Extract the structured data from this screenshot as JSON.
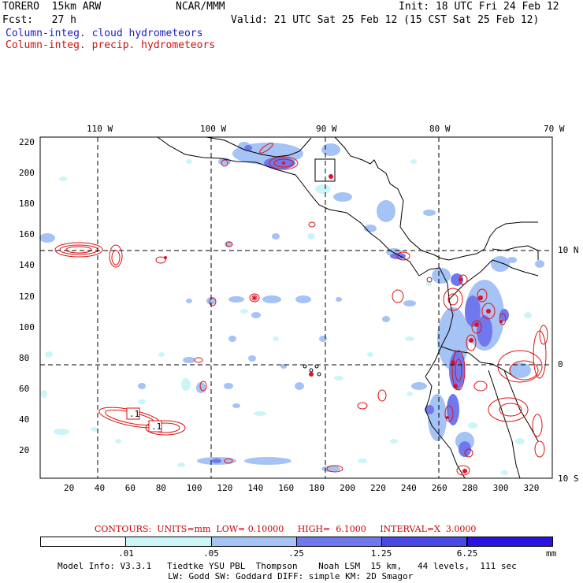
{
  "header": {
    "model": "TORERO  15km ARW",
    "org": "NCAR/MMM",
    "init": "Init: 18 UTC Fri 24 Feb 12",
    "fcst": "Fcst:   27 h",
    "valid": "Valid: 21 UTC Sat 25 Feb 12 (15 CST Sat 25 Feb 12)",
    "legend_blue": "Column-integ. cloud hydrometeors",
    "legend_red": "Column-integ. precip. hydrometeors"
  },
  "axes": {
    "top_lon_labels": [
      "110 W",
      "100 W",
      "90 W",
      "80 W",
      "70 W"
    ],
    "right_lat_labels": [
      "10 N",
      "0",
      "10 S"
    ],
    "x_ticks": [
      "20",
      "40",
      "60",
      "80",
      "100",
      "120",
      "140",
      "160",
      "180",
      "200",
      "220",
      "240",
      "260",
      "280",
      "300",
      "320"
    ],
    "y_ticks": [
      "220",
      "200",
      "180",
      "160",
      "140",
      "120",
      "100",
      "80",
      "60",
      "40",
      "20"
    ]
  },
  "contour_labels": [
    ".1",
    ".1"
  ],
  "contour_info": {
    "text": "CONTOURS:  UNITS=mm  LOW= 0.10000     HIGH=  6.1000     INTERVAL=X  3.0000"
  },
  "colorbar": {
    "labels": [
      ".01",
      ".05",
      ".25",
      "1.25",
      "6.25"
    ],
    "unit": "mm",
    "colors": [
      "#ffffff",
      "#ccf5f8",
      "#a6c3f5",
      "#7078ee",
      "#4848e8",
      "#2a14e4"
    ]
  },
  "footer": {
    "line1": "Model Info: V3.3.1   Tiedtke YSU PBL  Thompson    Noah LSM  15 km,   44 levels,  111 sec",
    "line2": "LW: Godd SW: Goddard DIFF: simple KM: 2D Smagor"
  },
  "colors": {
    "cloud_light": "#ccf5f8",
    "cloud_mid": "#a6c3f5",
    "cloud_dark": "#7078ee",
    "cloud_darker": "#4848e8",
    "precip_contour": "#dd1111"
  }
}
